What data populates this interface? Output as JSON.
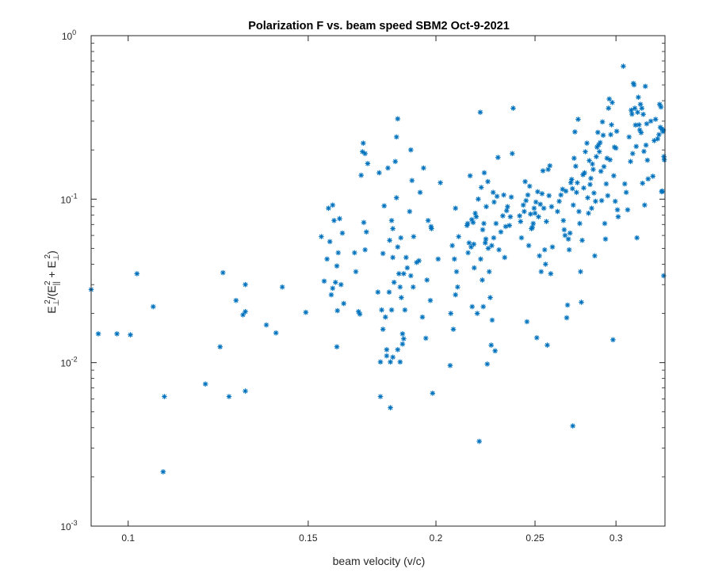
{
  "chart_data": {
    "type": "scatter",
    "title": "Polarization F vs. beam speed SBM2 Oct-9-2021",
    "xlabel": "beam velocity (v/c)",
    "ylabel_parts": {
      "e": "E",
      "perp": "⊥",
      "two": "2",
      "open": "/(E",
      "par": "||",
      "plus": " + E",
      "close": ")"
    },
    "x_scale": "log",
    "y_scale": "log",
    "xlim": [
      0.092,
      0.335
    ],
    "ylim": [
      0.001,
      1
    ],
    "grid": false,
    "legend": "none",
    "marker": "*",
    "marker_color": "#0072bd",
    "x_ticks": [
      {
        "value": 0.1,
        "label": "0.1"
      },
      {
        "value": 0.15,
        "label": "0.15"
      },
      {
        "value": 0.2,
        "label": "0.2"
      },
      {
        "value": 0.25,
        "label": "0.25"
      },
      {
        "value": 0.3,
        "label": "0.3"
      }
    ],
    "y_ticks": [
      {
        "value": 0.001,
        "base": "10",
        "exp": "-3"
      },
      {
        "value": 0.01,
        "base": "10",
        "exp": "-2"
      },
      {
        "value": 0.1,
        "base": "10",
        "exp": "-1"
      },
      {
        "value": 1,
        "base": "10",
        "exp": "0"
      }
    ],
    "points": [
      [
        0.092,
        0.028
      ],
      [
        0.0935,
        0.015
      ],
      [
        0.0975,
        0.015
      ],
      [
        0.1005,
        0.0148
      ],
      [
        0.102,
        0.035
      ],
      [
        0.1058,
        0.022
      ],
      [
        0.1085,
        0.0062
      ],
      [
        0.1082,
        0.00215
      ],
      [
        0.119,
        0.0074
      ],
      [
        0.123,
        0.0125
      ],
      [
        0.1238,
        0.0355
      ],
      [
        0.1255,
        0.0062
      ],
      [
        0.1275,
        0.024
      ],
      [
        0.1295,
        0.0196
      ],
      [
        0.1302,
        0.0205
      ],
      [
        0.1302,
        0.0067
      ],
      [
        0.1302,
        0.03
      ],
      [
        0.1365,
        0.017
      ],
      [
        0.1395,
        0.0152
      ],
      [
        0.1415,
        0.029
      ],
      [
        0.1492,
        0.0203
      ],
      [
        0.1545,
        0.059
      ],
      [
        0.1555,
        0.0315
      ],
      [
        0.1565,
        0.043
      ],
      [
        0.157,
        0.088
      ],
      [
        0.1575,
        0.055
      ],
      [
        0.158,
        0.026
      ],
      [
        0.1585,
        0.0285
      ],
      [
        0.1585,
        0.092
      ],
      [
        0.159,
        0.074
      ],
      [
        0.1595,
        0.031
      ],
      [
        0.16,
        0.0125
      ],
      [
        0.16,
        0.039
      ],
      [
        0.1602,
        0.0208
      ],
      [
        0.1605,
        0.047
      ],
      [
        0.161,
        0.076
      ],
      [
        0.1615,
        0.03
      ],
      [
        0.162,
        0.062
      ],
      [
        0.1625,
        0.023
      ],
      [
        0.1665,
        0.047
      ],
      [
        0.167,
        0.036
      ],
      [
        0.168,
        0.0205
      ],
      [
        0.1685,
        0.0198
      ],
      [
        0.169,
        0.14
      ],
      [
        0.1695,
        0.195
      ],
      [
        0.1698,
        0.22
      ],
      [
        0.17,
        0.072
      ],
      [
        0.1705,
        0.19
      ],
      [
        0.1705,
        0.049
      ],
      [
        0.171,
        0.063
      ],
      [
        0.1715,
        0.165
      ],
      [
        0.1755,
        0.027
      ],
      [
        0.176,
        0.145
      ],
      [
        0.1765,
        0.0062
      ],
      [
        0.1765,
        0.0101
      ],
      [
        0.177,
        0.021
      ],
      [
        0.1775,
        0.016
      ],
      [
        0.1775,
        0.0465
      ],
      [
        0.178,
        0.091
      ],
      [
        0.1785,
        0.019
      ],
      [
        0.179,
        0.012
      ],
      [
        0.179,
        0.011
      ],
      [
        0.1795,
        0.155
      ],
      [
        0.18,
        0.027
      ],
      [
        0.1802,
        0.056
      ],
      [
        0.1805,
        0.0101
      ],
      [
        0.1805,
        0.0053
      ],
      [
        0.181,
        0.021
      ],
      [
        0.181,
        0.074
      ],
      [
        0.1815,
        0.044
      ],
      [
        0.1815,
        0.066
      ],
      [
        0.182,
        0.031
      ],
      [
        0.1825,
        0.17
      ],
      [
        0.183,
        0.24
      ],
      [
        0.183,
        0.102
      ],
      [
        0.1835,
        0.051
      ],
      [
        0.1835,
        0.012
      ],
      [
        0.184,
        0.035
      ],
      [
        0.1845,
        0.029
      ],
      [
        0.1845,
        0.0101
      ],
      [
        0.1848,
        0.058
      ],
      [
        0.185,
        0.025
      ],
      [
        0.1855,
        0.015
      ],
      [
        0.1855,
        0.013
      ],
      [
        0.186,
        0.014
      ],
      [
        0.186,
        0.035
      ],
      [
        0.1865,
        0.021
      ],
      [
        0.187,
        0.044
      ],
      [
        0.1875,
        0.038
      ],
      [
        0.1885,
        0.084
      ],
      [
        0.189,
        0.2
      ],
      [
        0.189,
        0.034
      ],
      [
        0.1895,
        0.13
      ],
      [
        0.19,
        0.029
      ],
      [
        0.1902,
        0.059
      ],
      [
        0.1835,
        0.31
      ],
      [
        0.1815,
        0.0108
      ],
      [
        0.1915,
        0.041
      ],
      [
        0.1925,
        0.042
      ],
      [
        0.193,
        0.11
      ],
      [
        0.194,
        0.019
      ],
      [
        0.1945,
        0.155
      ],
      [
        0.1955,
        0.0141
      ],
      [
        0.196,
        0.032
      ],
      [
        0.1965,
        0.074
      ],
      [
        0.1975,
        0.024
      ],
      [
        0.1978,
        0.068
      ],
      [
        0.198,
        0.066
      ],
      [
        0.1985,
        0.0065
      ],
      [
        0.201,
        0.043
      ],
      [
        0.202,
        0.126
      ],
      [
        0.2065,
        0.0096
      ],
      [
        0.2068,
        0.02
      ],
      [
        0.2075,
        0.052
      ],
      [
        0.208,
        0.016
      ],
      [
        0.2085,
        0.043
      ],
      [
        0.209,
        0.026
      ],
      [
        0.209,
        0.088
      ],
      [
        0.2095,
        0.036
      ],
      [
        0.21,
        0.029
      ],
      [
        0.2105,
        0.059
      ],
      [
        0.2145,
        0.069
      ],
      [
        0.2148,
        0.071
      ],
      [
        0.215,
        0.047
      ],
      [
        0.2155,
        0.054
      ],
      [
        0.216,
        0.139
      ],
      [
        0.2165,
        0.051
      ],
      [
        0.2168,
        0.075
      ],
      [
        0.217,
        0.022
      ],
      [
        0.2175,
        0.072
      ],
      [
        0.2178,
        0.053
      ],
      [
        0.218,
        0.038
      ],
      [
        0.2185,
        0.082
      ],
      [
        0.219,
        0.078
      ],
      [
        0.2195,
        0.02
      ],
      [
        0.22,
        0.1
      ],
      [
        0.2205,
        0.0033
      ],
      [
        0.221,
        0.34
      ],
      [
        0.2212,
        0.043
      ],
      [
        0.2215,
        0.118
      ],
      [
        0.222,
        0.032
      ],
      [
        0.2222,
        0.065
      ],
      [
        0.2225,
        0.022
      ],
      [
        0.2228,
        0.071
      ],
      [
        0.223,
        0.145
      ],
      [
        0.2235,
        0.054
      ],
      [
        0.2238,
        0.057
      ],
      [
        0.224,
        0.09
      ],
      [
        0.2245,
        0.0098
      ],
      [
        0.2248,
        0.128
      ],
      [
        0.225,
        0.05
      ],
      [
        0.2255,
        0.036
      ],
      [
        0.226,
        0.025
      ],
      [
        0.2265,
        0.0128
      ],
      [
        0.2268,
        0.052
      ],
      [
        0.227,
        0.0182
      ],
      [
        0.2275,
        0.11
      ],
      [
        0.2278,
        0.058
      ],
      [
        0.228,
        0.096
      ],
      [
        0.2285,
        0.0118
      ],
      [
        0.229,
        0.071
      ],
      [
        0.2295,
        0.104
      ],
      [
        0.23,
        0.18
      ],
      [
        0.2305,
        0.049
      ],
      [
        0.2315,
        0.063
      ],
      [
        0.2325,
        0.079
      ],
      [
        0.233,
        0.106
      ],
      [
        0.2335,
        0.044
      ],
      [
        0.234,
        0.068
      ],
      [
        0.2345,
        0.085
      ],
      [
        0.235,
        0.09
      ],
      [
        0.236,
        0.069
      ],
      [
        0.2365,
        0.078
      ],
      [
        0.237,
        0.103
      ],
      [
        0.2375,
        0.19
      ],
      [
        0.238,
        0.36
      ],
      [
        0.2415,
        0.079
      ],
      [
        0.242,
        0.073
      ],
      [
        0.2425,
        0.058
      ],
      [
        0.2435,
        0.092
      ],
      [
        0.244,
        0.084
      ],
      [
        0.2445,
        0.128
      ],
      [
        0.245,
        0.098
      ],
      [
        0.2455,
        0.0178
      ],
      [
        0.246,
        0.106
      ],
      [
        0.2465,
        0.052
      ],
      [
        0.247,
        0.12
      ],
      [
        0.2475,
        0.081
      ],
      [
        0.248,
        0.066
      ],
      [
        0.2485,
        0.067
      ],
      [
        0.249,
        0.071
      ],
      [
        0.2495,
        0.088
      ],
      [
        0.25,
        0.082
      ],
      [
        0.2505,
        0.096
      ],
      [
        0.251,
        0.0142
      ],
      [
        0.2515,
        0.111
      ],
      [
        0.252,
        0.078
      ],
      [
        0.2525,
        0.045
      ],
      [
        0.253,
        0.093
      ],
      [
        0.2535,
        0.036
      ],
      [
        0.254,
        0.108
      ],
      [
        0.2545,
        0.149
      ],
      [
        0.255,
        0.088
      ],
      [
        0.2555,
        0.049
      ],
      [
        0.256,
        0.04
      ],
      [
        0.2565,
        0.073
      ],
      [
        0.257,
        0.0128
      ],
      [
        0.2575,
        0.152
      ],
      [
        0.258,
        0.105
      ],
      [
        0.2585,
        0.16
      ],
      [
        0.259,
        0.035
      ],
      [
        0.2595,
        0.09
      ],
      [
        0.26,
        0.051
      ],
      [
        0.263,
        0.084
      ],
      [
        0.264,
        0.097
      ],
      [
        0.265,
        0.106
      ],
      [
        0.266,
        0.115
      ],
      [
        0.2665,
        0.074
      ],
      [
        0.267,
        0.065
      ],
      [
        0.2675,
        0.06
      ],
      [
        0.268,
        0.112
      ],
      [
        0.2685,
        0.0188
      ],
      [
        0.269,
        0.0225
      ],
      [
        0.2695,
        0.057
      ],
      [
        0.27,
        0.049
      ],
      [
        0.2705,
        0.062
      ],
      [
        0.271,
        0.126
      ],
      [
        0.2715,
        0.132
      ],
      [
        0.272,
        0.116
      ],
      [
        0.2722,
        0.0041
      ],
      [
        0.2725,
        0.092
      ],
      [
        0.273,
        0.178
      ],
      [
        0.2735,
        0.258
      ],
      [
        0.274,
        0.159
      ],
      [
        0.2745,
        0.11
      ],
      [
        0.275,
        0.126
      ],
      [
        0.2755,
        0.308
      ],
      [
        0.276,
        0.084
      ],
      [
        0.2765,
        0.071
      ],
      [
        0.277,
        0.036
      ],
      [
        0.2775,
        0.0234
      ],
      [
        0.278,
        0.056
      ],
      [
        0.2785,
        0.141
      ],
      [
        0.279,
        0.117
      ],
      [
        0.2795,
        0.145
      ],
      [
        0.28,
        0.195
      ],
      [
        0.281,
        0.22
      ],
      [
        0.2815,
        0.102
      ],
      [
        0.282,
        0.082
      ],
      [
        0.2825,
        0.172
      ],
      [
        0.283,
        0.123
      ],
      [
        0.2835,
        0.134
      ],
      [
        0.284,
        0.088
      ],
      [
        0.2845,
        0.164
      ],
      [
        0.285,
        0.152
      ],
      [
        0.2855,
        0.109
      ],
      [
        0.286,
        0.045
      ],
      [
        0.2865,
        0.097
      ],
      [
        0.287,
        0.182
      ],
      [
        0.2875,
        0.208
      ],
      [
        0.288,
        0.256
      ],
      [
        0.2885,
        0.215
      ],
      [
        0.289,
        0.195
      ],
      [
        0.2895,
        0.222
      ],
      [
        0.29,
        0.148
      ],
      [
        0.2905,
        0.098
      ],
      [
        0.291,
        0.297
      ],
      [
        0.2915,
        0.246
      ],
      [
        0.292,
        0.158
      ],
      [
        0.2925,
        0.071
      ],
      [
        0.293,
        0.057
      ],
      [
        0.2935,
        0.124
      ],
      [
        0.294,
        0.178
      ],
      [
        0.2945,
        0.105
      ],
      [
        0.295,
        0.36
      ],
      [
        0.2955,
        0.41
      ],
      [
        0.296,
        0.174
      ],
      [
        0.2965,
        0.248
      ],
      [
        0.297,
        0.285
      ],
      [
        0.2975,
        0.39
      ],
      [
        0.298,
        0.0138
      ],
      [
        0.2985,
        0.139
      ],
      [
        0.299,
        0.208
      ],
      [
        0.2995,
        0.097
      ],
      [
        0.3,
        0.205
      ],
      [
        0.3005,
        0.26
      ],
      [
        0.301,
        0.086
      ],
      [
        0.3015,
        0.078
      ],
      [
        0.305,
        0.65
      ],
      [
        0.306,
        0.124
      ],
      [
        0.307,
        0.11
      ],
      [
        0.308,
        0.086
      ],
      [
        0.309,
        0.24
      ],
      [
        0.31,
        0.17
      ],
      [
        0.3105,
        0.35
      ],
      [
        0.311,
        0.331
      ],
      [
        0.3115,
        0.19
      ],
      [
        0.312,
        0.51
      ],
      [
        0.3125,
        0.5
      ],
      [
        0.313,
        0.36
      ],
      [
        0.3135,
        0.284
      ],
      [
        0.314,
        0.21
      ],
      [
        0.3145,
        0.058
      ],
      [
        0.315,
        0.34
      ],
      [
        0.3155,
        0.42
      ],
      [
        0.316,
        0.285
      ],
      [
        0.3165,
        0.265
      ],
      [
        0.317,
        0.38
      ],
      [
        0.3175,
        0.255
      ],
      [
        0.318,
        0.36
      ],
      [
        0.3185,
        0.125
      ],
      [
        0.319,
        0.33
      ],
      [
        0.3195,
        0.196
      ],
      [
        0.32,
        0.092
      ],
      [
        0.3205,
        0.49
      ],
      [
        0.321,
        0.214
      ],
      [
        0.3215,
        0.289
      ],
      [
        0.322,
        0.173
      ],
      [
        0.3225,
        0.133
      ],
      [
        0.3245,
        0.3
      ],
      [
        0.326,
        0.138
      ],
      [
        0.327,
        0.228
      ],
      [
        0.328,
        0.308
      ],
      [
        0.3295,
        0.234
      ],
      [
        0.3305,
        0.248
      ],
      [
        0.331,
        0.38
      ],
      [
        0.3315,
        0.275
      ],
      [
        0.332,
        0.366
      ],
      [
        0.3325,
        0.111
      ],
      [
        0.333,
        0.112
      ],
      [
        0.3335,
        0.259
      ],
      [
        0.334,
        0.034
      ],
      [
        0.3342,
        0.182
      ],
      [
        0.3345,
        0.174
      ],
      [
        0.3338,
        0.265
      ],
      [
        0.3328,
        0.268
      ]
    ]
  }
}
